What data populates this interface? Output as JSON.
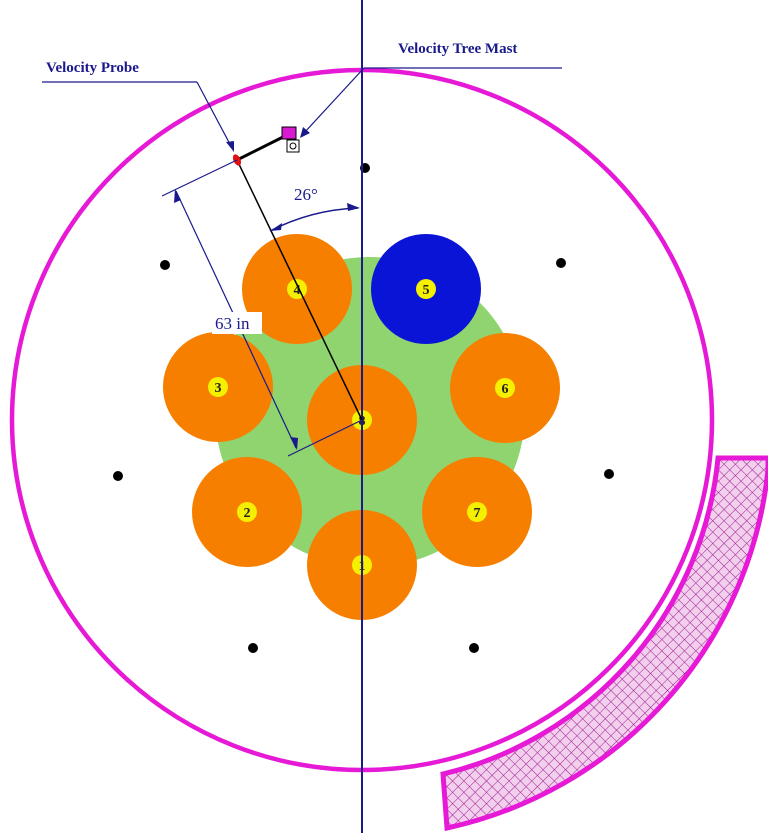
{
  "labels": {
    "velocity_probe": "Velocity Probe",
    "velocity_tree_mast": "Velocity Tree Mast",
    "angle": "26°",
    "distance": "63 in"
  },
  "circles": [
    {
      "id": "1",
      "label": "1",
      "color": "#f77f00"
    },
    {
      "id": "2",
      "label": "2",
      "color": "#f77f00"
    },
    {
      "id": "3",
      "label": "3",
      "color": "#f77f00"
    },
    {
      "id": "4",
      "label": "4",
      "color": "#f77f00"
    },
    {
      "id": "5",
      "label": "5",
      "color": "#0a14d6"
    },
    {
      "id": "6",
      "label": "6",
      "color": "#f77f00"
    },
    {
      "id": "7",
      "label": "7",
      "color": "#f77f00"
    },
    {
      "id": "8",
      "label": "8",
      "color": "#f77f00"
    }
  ],
  "colors": {
    "outer_ring": "#e619d6",
    "center_area": "#8fd46e",
    "label_dot": "#f5ef00",
    "dimension_line": "#1a1a8c",
    "hatched_block_fill": "#f0c8e8",
    "probe_marker": "#e01010"
  }
}
